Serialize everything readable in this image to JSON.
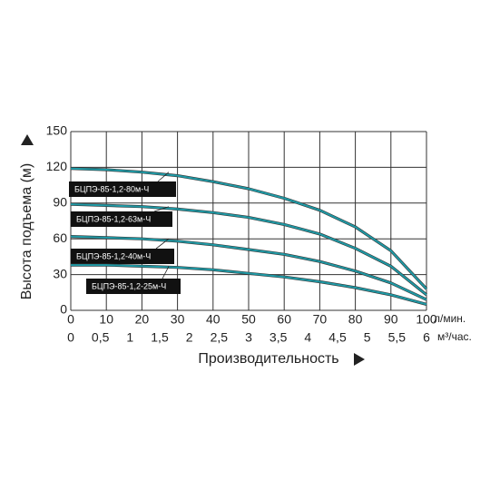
{
  "chart_data": {
    "type": "line",
    "ylabel": "Высота подъема (м)",
    "xlabel": "Производительность",
    "xunit": "л/мин.",
    "x2unit": "м³/час.",
    "x": [
      0,
      10,
      20,
      30,
      40,
      50,
      60,
      70,
      80,
      90,
      100
    ],
    "xlim": [
      0,
      100
    ],
    "xticks": [
      0,
      10,
      20,
      30,
      40,
      50,
      60,
      70,
      80,
      90,
      100
    ],
    "x2lim": [
      0,
      6
    ],
    "x2ticks": [
      0,
      {
        "value": 0.5,
        "label": "0,5"
      },
      1,
      {
        "value": 1.5,
        "label": "1,5"
      },
      2,
      {
        "value": 2.5,
        "label": "2,5"
      },
      3,
      {
        "value": 3.5,
        "label": "3,5"
      },
      4,
      {
        "value": 4.5,
        "label": "4,5"
      },
      5,
      {
        "value": 5.5,
        "label": "5,5"
      },
      6
    ],
    "ylim": [
      0,
      150
    ],
    "yticks": [
      0,
      30,
      60,
      90,
      120,
      150
    ],
    "grid": true,
    "series": [
      {
        "name": "БЦПЭ-85-1,2-80м-Ч",
        "color": "#1f9aa6",
        "values": [
          119,
          118,
          116,
          113,
          108,
          102,
          94,
          84,
          70,
          50,
          18
        ]
      },
      {
        "name": "БЦПЭ-85-1,2-63м-Ч",
        "color": "#1f9aa6",
        "values": [
          89,
          88,
          87,
          85,
          82,
          78,
          72,
          64,
          52,
          37,
          13
        ]
      },
      {
        "name": "БЦПЭ-85-1,2-40м-Ч",
        "color": "#1f9aa6",
        "values": [
          62,
          61,
          60,
          58,
          55,
          51,
          47,
          41,
          33,
          23,
          9
        ]
      },
      {
        "name": "БЦПЭ-85-1,2-25м-Ч",
        "color": "#1f9aa6",
        "values": [
          38,
          38,
          37,
          36,
          34,
          31,
          28,
          24,
          19,
          13,
          5
        ]
      }
    ]
  }
}
